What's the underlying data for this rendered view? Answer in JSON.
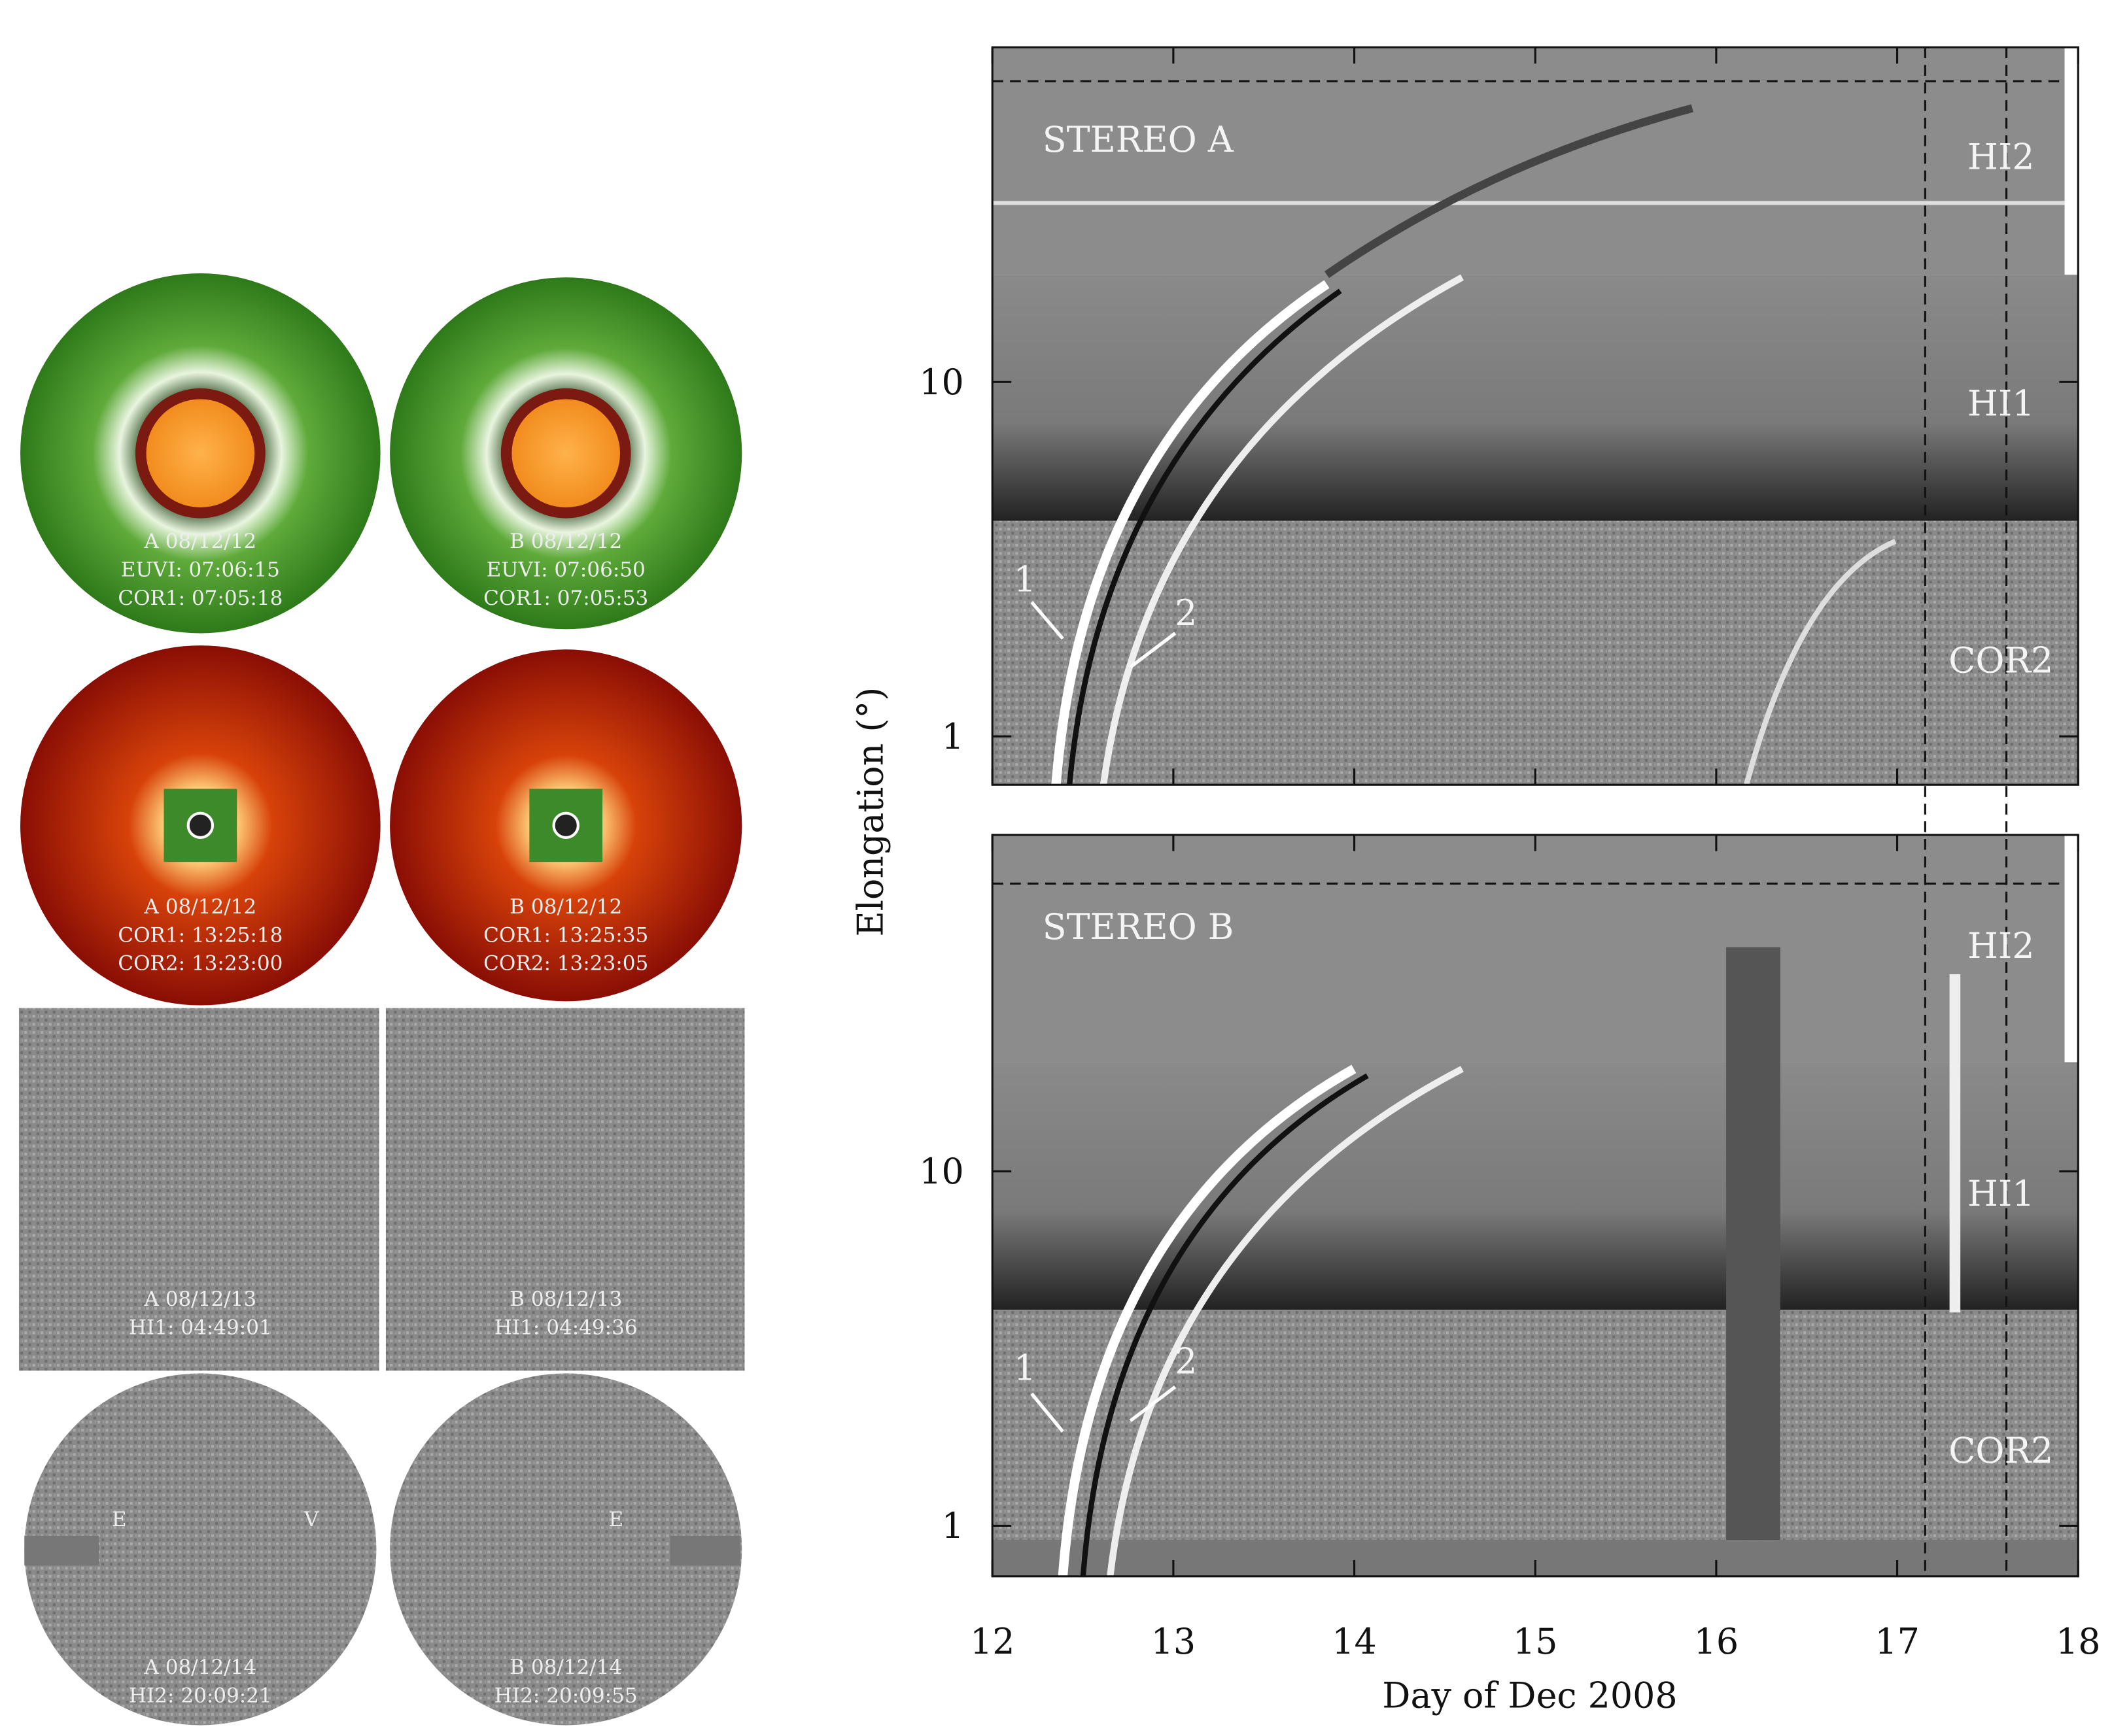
{
  "panels": [
    {
      "lines": [
        "A 08/12/12",
        "EUVI: 07:06:15",
        "COR1: 07:05:18"
      ]
    },
    {
      "lines": [
        "B 08/12/12",
        "EUVI: 07:06:50",
        "COR1: 07:05:53"
      ]
    },
    {
      "lines": [
        "A 08/12/12",
        "COR1: 13:25:18",
        "COR2: 13:23:00"
      ]
    },
    {
      "lines": [
        "B 08/12/12",
        "COR1: 13:25:35",
        "COR2: 13:23:05"
      ]
    },
    {
      "lines": [
        "A 08/12/13",
        "HI1: 04:49:01"
      ]
    },
    {
      "lines": [
        "B 08/12/13",
        "HI1: 04:49:36"
      ]
    },
    {
      "lines": [
        "A 08/12/14",
        "HI2: 20:09:21"
      ],
      "markers": [
        "E",
        "V"
      ]
    },
    {
      "lines": [
        "B 08/12/14",
        "HI2: 20:09:55"
      ],
      "markers": [
        "E"
      ]
    }
  ],
  "jmap": {
    "x_label": "Day of Dec 2008",
    "y_label": "Elongation (°)",
    "xlim": [
      12,
      18
    ],
    "xticks": [
      12,
      13,
      14,
      15,
      16,
      17,
      18
    ],
    "plots": [
      {
        "title": "STEREO A",
        "bands": [
          "HI2",
          "HI1",
          "COR2"
        ],
        "track_labels": [
          "1",
          "2"
        ],
        "yscale": "log",
        "ylim": [
          0.73,
          88
        ],
        "yticks": [
          1,
          10
        ]
      },
      {
        "title": "STEREO B",
        "bands": [
          "HI2",
          "HI1",
          "COR2"
        ],
        "track_labels": [
          "1",
          "2"
        ],
        "yscale": "log",
        "ylim": [
          0.72,
          89
        ],
        "yticks": [
          1,
          10
        ]
      }
    ]
  }
}
